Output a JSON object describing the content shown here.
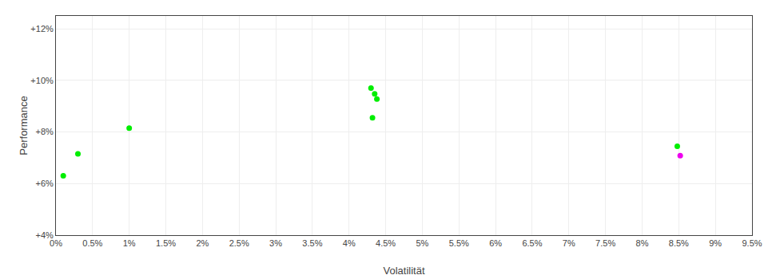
{
  "chart_data": {
    "type": "scatter",
    "xlabel": "Volatilität",
    "ylabel": "Performance",
    "grid": true,
    "xlim": [
      0.0,
      0.095
    ],
    "ylim": [
      0.04,
      0.125
    ],
    "xticks": [
      {
        "value": 0.0,
        "label": "0%"
      },
      {
        "value": 0.005,
        "label": "0.5%"
      },
      {
        "value": 0.01,
        "label": "1%"
      },
      {
        "value": 0.015,
        "label": "1.5%"
      },
      {
        "value": 0.02,
        "label": "2%"
      },
      {
        "value": 0.025,
        "label": "2.5%"
      },
      {
        "value": 0.03,
        "label": "3%"
      },
      {
        "value": 0.035,
        "label": "3.5%"
      },
      {
        "value": 0.04,
        "label": "4%"
      },
      {
        "value": 0.045,
        "label": "4.5%"
      },
      {
        "value": 0.05,
        "label": "5%"
      },
      {
        "value": 0.055,
        "label": "5.5%"
      },
      {
        "value": 0.06,
        "label": "6%"
      },
      {
        "value": 0.065,
        "label": "6.5%"
      },
      {
        "value": 0.07,
        "label": "7%"
      },
      {
        "value": 0.075,
        "label": "7.5%"
      },
      {
        "value": 0.08,
        "label": "8%"
      },
      {
        "value": 0.085,
        "label": "8.5%"
      },
      {
        "value": 0.09,
        "label": "9%"
      },
      {
        "value": 0.095,
        "label": "9.5%"
      }
    ],
    "yticks": [
      {
        "value": 0.04,
        "label": "+4%"
      },
      {
        "value": 0.06,
        "label": "+6%"
      },
      {
        "value": 0.08,
        "label": "+8%"
      },
      {
        "value": 0.1,
        "label": "+10%"
      },
      {
        "value": 0.12,
        "label": "+12%"
      }
    ],
    "series": [
      {
        "color": "#00ee00",
        "x": [
          0.003,
          0.001,
          0.01,
          0.043,
          0.0435,
          0.0438,
          0.0432,
          0.0848
        ],
        "values": [
          0.0715,
          0.063,
          0.0815,
          0.097,
          0.0948,
          0.0928,
          0.0855,
          0.0745
        ]
      },
      {
        "color": "#ee00ee",
        "x": [
          0.0852
        ],
        "values": [
          0.0708
        ]
      }
    ]
  }
}
